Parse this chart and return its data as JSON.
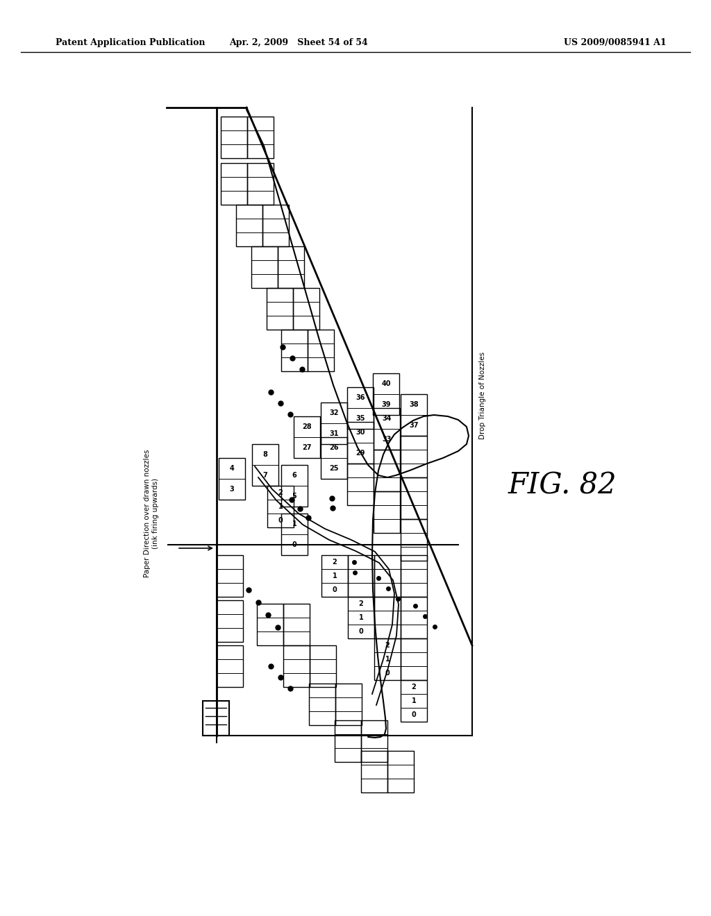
{
  "title_left": "Patent Application Publication",
  "title_center": "Apr. 2, 2009   Sheet 54 of 54",
  "title_right": "US 2009/0085941 A1",
  "fig_label": "FIG. 82",
  "background_color": "#ffffff",
  "line_color": "#000000"
}
